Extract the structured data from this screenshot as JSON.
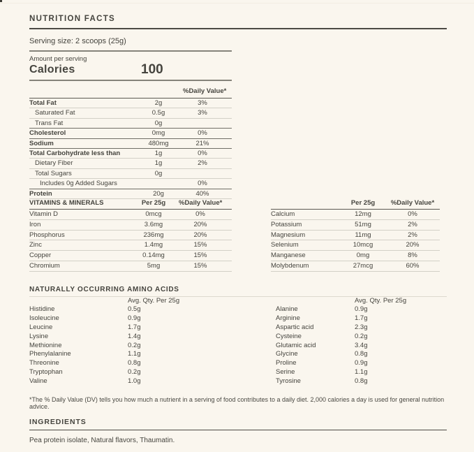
{
  "colors": {
    "background": "#faf6ee",
    "text": "#45443e",
    "rule_dark": "#4c4a44",
    "rule_light": "#d3d0c7"
  },
  "header": {
    "title": "NUTRITION FACTS"
  },
  "serving": {
    "label": "Serving size: 2 scoops (25g)"
  },
  "calories": {
    "amount_label": "Amount per serving",
    "label": "Calories",
    "value": "100"
  },
  "main_table": {
    "dv_header": "%Daily Value*",
    "rows": [
      {
        "label": "Total Fat",
        "value": "2g",
        "dv": "3%"
      },
      {
        "label": "Saturated Fat",
        "value": "0.5g",
        "dv": "3%"
      },
      {
        "label": "Trans Fat",
        "value": "0g",
        "dv": ""
      },
      {
        "label": "Cholesterol",
        "value": "0mg",
        "dv": "0%"
      },
      {
        "label": "Sodium",
        "value": "480mg",
        "dv": "21%"
      },
      {
        "label": "Total Carbohydrate less than",
        "value": "1g",
        "dv": "0%"
      },
      {
        "label": "Dietary Fiber",
        "value": "1g",
        "dv": "2%"
      },
      {
        "label": "Total Sugars",
        "value": "0g",
        "dv": ""
      },
      {
        "label": "Includes 0g Added Sugars",
        "value": "",
        "dv": "0%"
      },
      {
        "label": "Protein",
        "value": "20g",
        "dv": "40%"
      }
    ]
  },
  "vitamins": {
    "title": "VITAMINS & MINERALS",
    "col_qty": "Per 25g",
    "col_dv": "%Daily Value*",
    "left_rows": [
      {
        "label": "Vitamin D",
        "qty": "0mcg",
        "dv": "0%"
      },
      {
        "label": "Iron",
        "qty": "3.6mg",
        "dv": "20%"
      },
      {
        "label": "Phosphorus",
        "qty": "236mg",
        "dv": "20%"
      },
      {
        "label": "Zinc",
        "qty": "1.4mg",
        "dv": "15%"
      },
      {
        "label": "Copper",
        "qty": "0.14mg",
        "dv": "15%"
      },
      {
        "label": "Chromium",
        "qty": "5mg",
        "dv": "15%"
      }
    ],
    "right_rows": [
      {
        "label": "Calcium",
        "qty": "12mg",
        "dv": "0%"
      },
      {
        "label": "Potassium",
        "qty": "51mg",
        "dv": "2%"
      },
      {
        "label": "Magnesium",
        "qty": "11mg",
        "dv": "2%"
      },
      {
        "label": "Selenium",
        "qty": "10mcg",
        "dv": "20%"
      },
      {
        "label": "Manganese",
        "qty": "0mg",
        "dv": "8%"
      },
      {
        "label": "Molybdenum",
        "qty": "27mcg",
        "dv": "60%"
      }
    ]
  },
  "amino_acids": {
    "title": "NATURALLY OCCURRING AMINO ACIDS",
    "col_qty": "Avg. Qty. Per 25g",
    "left_rows": [
      {
        "label": "Histidine",
        "qty": "0.5g"
      },
      {
        "label": "Isoleucine",
        "qty": "0.9g"
      },
      {
        "label": "Leucine",
        "qty": "1.7g"
      },
      {
        "label": "Lysine",
        "qty": "1.4g"
      },
      {
        "label": "Methionine",
        "qty": "0.2g"
      },
      {
        "label": "Phenylalanine",
        "qty": "1.1g"
      },
      {
        "label": "Threonine",
        "qty": "0.8g"
      },
      {
        "label": "Tryptophan",
        "qty": "0.2g"
      },
      {
        "label": "Valine",
        "qty": "1.0g"
      }
    ],
    "right_rows": [
      {
        "label": "Alanine",
        "qty": "0.9g"
      },
      {
        "label": "Arginine",
        "qty": "1.7g"
      },
      {
        "label": "Aspartic acid",
        "qty": "2.3g"
      },
      {
        "label": "Cysteine",
        "qty": "0.2g"
      },
      {
        "label": "Glutamic acid",
        "qty": "3.4g"
      },
      {
        "label": "Glycine",
        "qty": "0.8g"
      },
      {
        "label": "Proline",
        "qty": "0.9g"
      },
      {
        "label": "Serine",
        "qty": "1.1g"
      },
      {
        "label": "Tyrosine",
        "qty": "0.8g"
      }
    ]
  },
  "footnote": "*The % Daily Value (DV) tells you how much a nutrient in a serving of food contributes to a daily diet. 2,000 calories a day is used for general nutrition advice.",
  "ingredients": {
    "title": "INGREDIENTS",
    "text": "Pea protein isolate, Natural flavors, Thaumatin."
  }
}
